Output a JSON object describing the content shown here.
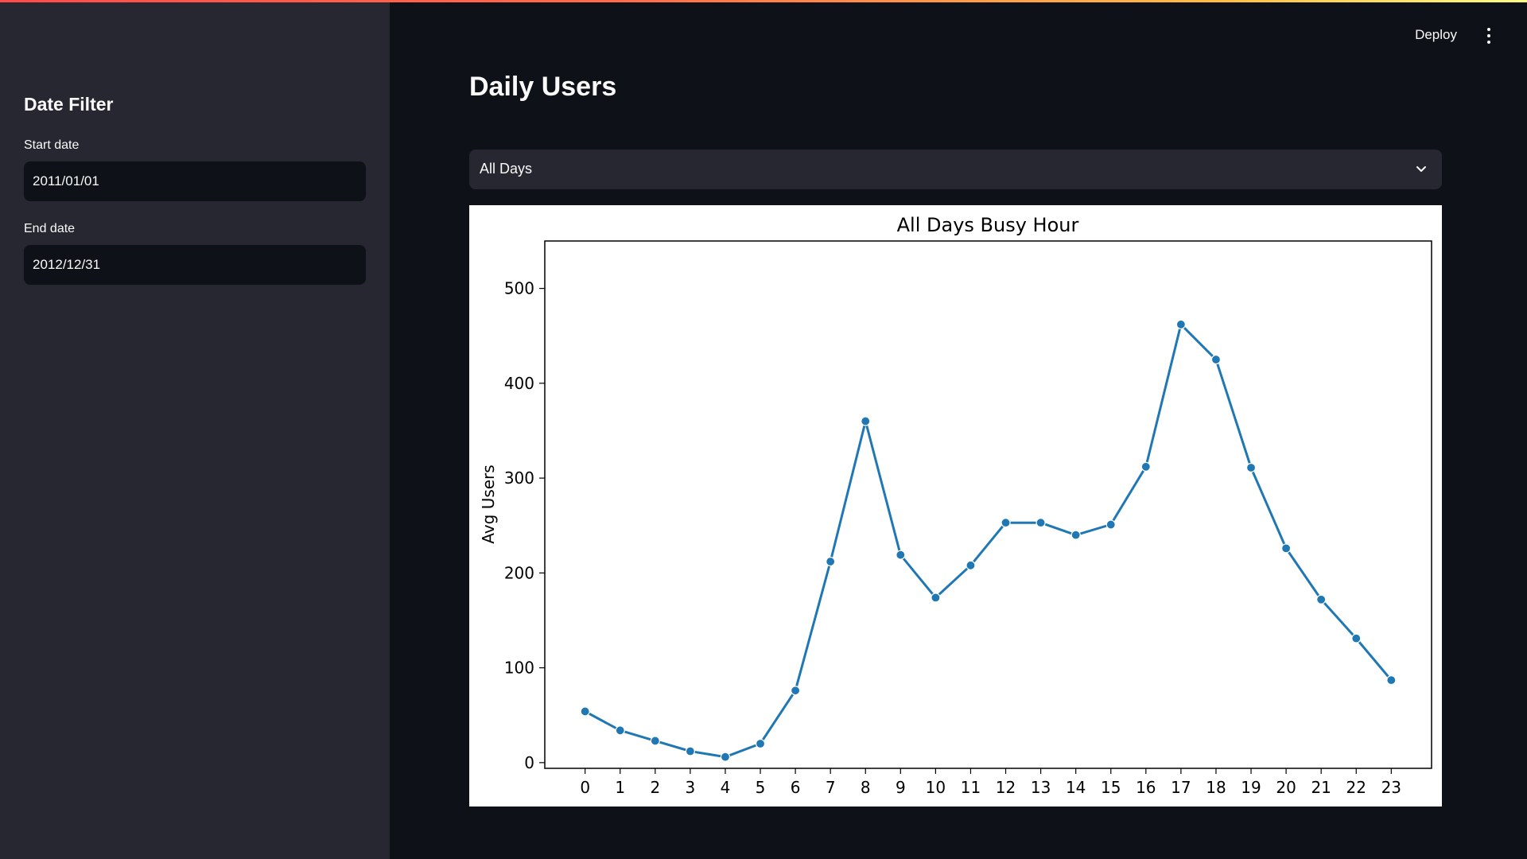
{
  "sidebar": {
    "title": "Date Filter",
    "start_label": "Start date",
    "start_value": "2011/01/01",
    "end_label": "End date",
    "end_value": "2012/12/31"
  },
  "header": {
    "deploy_label": "Deploy",
    "menu_icon": "more-vertical-icon"
  },
  "main": {
    "title": "Daily Users",
    "select": {
      "value": "All Days",
      "icon": "chevron-down-icon"
    }
  },
  "colors": {
    "accent_gradient": [
      "#ff4b4b",
      "#ffbd45",
      "#fffd80"
    ],
    "series": "#1f77b4",
    "sidebar_bg": "#262730",
    "app_bg": "#0e1117"
  },
  "chart_data": {
    "type": "line",
    "title": "All Days Busy Hour",
    "xlabel": "",
    "ylabel": "Avg Users",
    "x": [
      0,
      1,
      2,
      3,
      4,
      5,
      6,
      7,
      8,
      9,
      10,
      11,
      12,
      13,
      14,
      15,
      16,
      17,
      18,
      19,
      20,
      21,
      22,
      23
    ],
    "series": [
      {
        "values": [
          54,
          34,
          23,
          12,
          6,
          20,
          76,
          212,
          360,
          219,
          174,
          208,
          253,
          253,
          240,
          251,
          312,
          462,
          425,
          311,
          226,
          172,
          131,
          87
        ]
      }
    ],
    "yticks": [
      0,
      100,
      200,
      300,
      400,
      500
    ],
    "ylim": [
      -6,
      550
    ],
    "xlim": [
      -1.15,
      24.15
    ],
    "grid": false,
    "markers": true
  }
}
